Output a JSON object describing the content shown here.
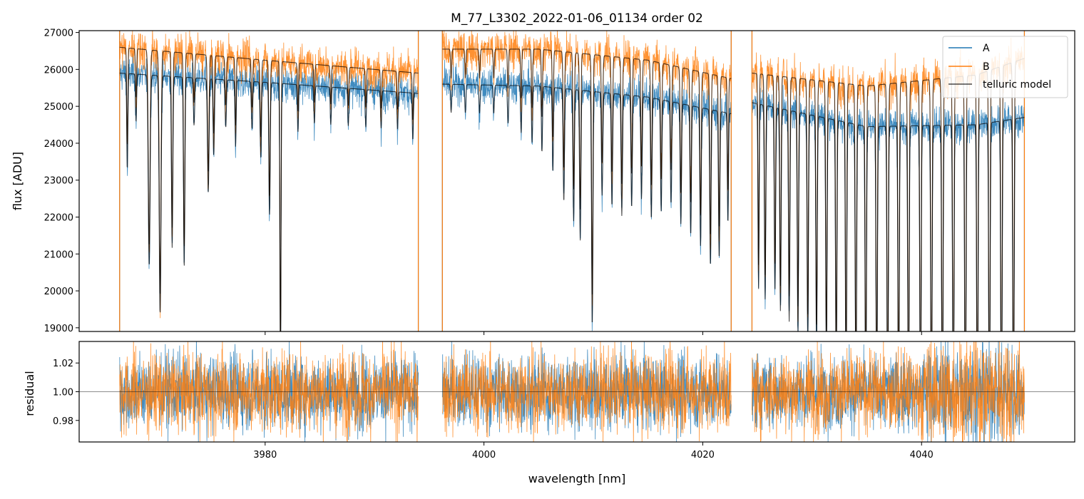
{
  "chart_data": [
    {
      "type": "line",
      "panel": "top",
      "title": "M_77_L3302_2022-01-06_01134  order 02",
      "xlabel": "",
      "ylabel": "flux [ADU]",
      "xlim": [
        3963,
        4054
      ],
      "ylim": [
        18900,
        27050
      ],
      "y_ticks": [
        19000,
        20000,
        21000,
        22000,
        23000,
        24000,
        25000,
        26000,
        27000
      ],
      "x_ticks": [
        3980,
        4000,
        4020,
        4040
      ],
      "grid": false,
      "legend_position": "top-right",
      "segments_x": [
        [
          3966.7,
          3994.0
        ],
        [
          3996.2,
          4022.6
        ],
        [
          4024.5,
          4049.4
        ]
      ],
      "series": [
        {
          "name": "A",
          "color": "#1f77b4",
          "style": "noisy",
          "continuum": [
            [
              3966.7,
              25900
            ],
            [
              3980,
              25650
            ],
            [
              3994,
              25350
            ],
            [
              3996.2,
              25600
            ],
            [
              4005,
              25550
            ],
            [
              4015,
              25250
            ],
            [
              4022.6,
              24800
            ],
            [
              4024.5,
              25100
            ],
            [
              4035,
              24450
            ],
            [
              4045,
              24500
            ],
            [
              4049.4,
              24700
            ]
          ]
        },
        {
          "name": "B",
          "color": "#ff7f0e",
          "style": "noisy",
          "continuum": [
            [
              3966.7,
              26600
            ],
            [
              3980,
              26250
            ],
            [
              3994,
              25900
            ],
            [
              3996.2,
              26550
            ],
            [
              4005,
              26550
            ],
            [
              4015,
              26250
            ],
            [
              4022.6,
              25750
            ],
            [
              4024.5,
              25900
            ],
            [
              4035,
              25550
            ],
            [
              4045,
              25850
            ],
            [
              4049.4,
              26300
            ]
          ]
        },
        {
          "name": "telluric model",
          "color": "#000000",
          "style": "model",
          "continuum_series": [
            "A",
            "B"
          ]
        }
      ],
      "absorption_lines": [
        [
          3967.4,
          0.05,
          0.9
        ],
        [
          3968.2,
          0.05,
          0.95
        ],
        [
          3969.4,
          0.08,
          0.8
        ],
        [
          3970.4,
          0.08,
          0.75
        ],
        [
          3971.5,
          0.06,
          0.82
        ],
        [
          3972.6,
          0.06,
          0.8
        ],
        [
          3973.5,
          0.06,
          0.95
        ],
        [
          3974.8,
          0.07,
          0.88
        ],
        [
          3975.3,
          0.06,
          0.92
        ],
        [
          3976.4,
          0.06,
          0.95
        ],
        [
          3977.3,
          0.05,
          0.93
        ],
        [
          3978.8,
          0.06,
          0.95
        ],
        [
          3979.6,
          0.06,
          0.92
        ],
        [
          3980.4,
          0.06,
          0.86
        ],
        [
          3981.4,
          0.05,
          0.7
        ],
        [
          3983.0,
          0.05,
          0.95
        ],
        [
          3984.5,
          0.05,
          0.96
        ],
        [
          3986.0,
          0.05,
          0.96
        ],
        [
          3987.6,
          0.05,
          0.96
        ],
        [
          3989.2,
          0.05,
          0.96
        ],
        [
          3990.6,
          0.05,
          0.96
        ],
        [
          3992.1,
          0.05,
          0.96
        ],
        [
          3993.5,
          0.05,
          0.95
        ],
        [
          3997.0,
          0.05,
          0.97
        ],
        [
          3998.3,
          0.05,
          0.97
        ],
        [
          3999.6,
          0.05,
          0.97
        ],
        [
          4000.9,
          0.05,
          0.97
        ],
        [
          4002.2,
          0.05,
          0.96
        ],
        [
          4003.4,
          0.05,
          0.95
        ],
        [
          4004.4,
          0.05,
          0.94
        ],
        [
          4005.3,
          0.05,
          0.93
        ],
        [
          4006.3,
          0.05,
          0.91
        ],
        [
          4007.3,
          0.06,
          0.88
        ],
        [
          4008.2,
          0.06,
          0.86
        ],
        [
          4008.8,
          0.06,
          0.84
        ],
        [
          4009.9,
          0.06,
          0.75
        ],
        [
          4010.8,
          0.06,
          0.89
        ],
        [
          4011.7,
          0.06,
          0.88
        ],
        [
          4012.6,
          0.06,
          0.87
        ],
        [
          4013.5,
          0.06,
          0.88
        ],
        [
          4014.4,
          0.06,
          0.89
        ],
        [
          4015.3,
          0.06,
          0.87
        ],
        [
          4016.2,
          0.06,
          0.88
        ],
        [
          4017.1,
          0.06,
          0.89
        ],
        [
          4018.0,
          0.06,
          0.87
        ],
        [
          4018.9,
          0.06,
          0.86
        ],
        [
          4019.8,
          0.06,
          0.85
        ],
        [
          4020.7,
          0.06,
          0.83
        ],
        [
          4021.5,
          0.06,
          0.84
        ],
        [
          4022.3,
          0.05,
          0.88
        ],
        [
          4025.1,
          0.05,
          0.8
        ],
        [
          4025.7,
          0.06,
          0.79
        ],
        [
          4026.6,
          0.06,
          0.8
        ],
        [
          4027.1,
          0.06,
          0.78
        ],
        [
          4027.9,
          0.06,
          0.77
        ],
        [
          4028.7,
          0.06,
          0.76
        ],
        [
          4029.6,
          0.06,
          0.75
        ],
        [
          4030.4,
          0.06,
          0.74
        ],
        [
          4031.3,
          0.06,
          0.73
        ],
        [
          4032.2,
          0.06,
          0.71
        ],
        [
          4033.1,
          0.06,
          0.7
        ],
        [
          4034.0,
          0.06,
          0.69
        ],
        [
          4034.9,
          0.06,
          0.68
        ],
        [
          4035.9,
          0.06,
          0.67
        ],
        [
          4036.9,
          0.06,
          0.66
        ],
        [
          4037.9,
          0.06,
          0.66
        ],
        [
          4038.8,
          0.06,
          0.65
        ],
        [
          4039.9,
          0.06,
          0.65
        ],
        [
          4040.9,
          0.06,
          0.64
        ],
        [
          4041.9,
          0.06,
          0.64
        ],
        [
          4042.9,
          0.06,
          0.63
        ],
        [
          4044.0,
          0.06,
          0.63
        ],
        [
          4045.1,
          0.06,
          0.63
        ],
        [
          4046.2,
          0.06,
          0.63
        ],
        [
          4047.3,
          0.06,
          0.62
        ],
        [
          4048.4,
          0.06,
          0.63
        ]
      ]
    },
    {
      "type": "line",
      "panel": "bottom",
      "title": "",
      "xlabel": "wavelength [nm]",
      "ylabel": "residual",
      "xlim": [
        3963,
        4054
      ],
      "ylim": [
        0.965,
        1.035
      ],
      "y_ticks": [
        0.98,
        1.0,
        1.02
      ],
      "x_ticks": [
        3980,
        4000,
        4020,
        4040
      ],
      "reference_line": 1.0,
      "grid": false,
      "series": [
        {
          "name": "A",
          "color": "#1f77b4",
          "center": 1.0,
          "spread": 0.013
        },
        {
          "name": "B",
          "color": "#ff7f0e",
          "center": 1.0,
          "spread": 0.014
        }
      ]
    }
  ],
  "tick_labels": {
    "top_y": [
      "19000",
      "20000",
      "21000",
      "22000",
      "23000",
      "24000",
      "25000",
      "26000",
      "27000"
    ],
    "bottom_y": [
      "0.98",
      "1.00",
      "1.02"
    ],
    "bottom_x": [
      "3980",
      "4000",
      "4020",
      "4040"
    ]
  },
  "legend": {
    "position": "top-right",
    "entries": [
      "A",
      "B",
      "telluric model"
    ]
  }
}
